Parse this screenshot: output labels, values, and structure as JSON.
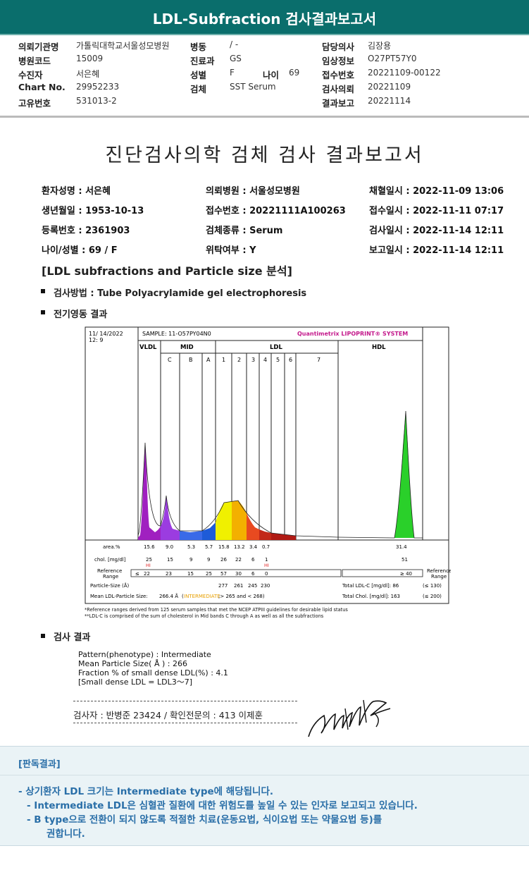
{
  "header": {
    "title": "LDL-Subfraction 검사결과보고서",
    "left": [
      {
        "label": "의뢰기관명",
        "value": "가톨릭대학교서울성모병원"
      },
      {
        "label": "병원코드",
        "value": "15009"
      },
      {
        "label": "수진자",
        "value": "서은혜"
      },
      {
        "label": "Chart No.",
        "value": "29952233"
      },
      {
        "label": "고유번호",
        "value": "531013-2"
      }
    ],
    "mid": [
      {
        "label": "병동",
        "value": "/ -"
      },
      {
        "label": "진료과",
        "value": "GS"
      },
      {
        "label": "성별",
        "value": "F"
      },
      {
        "label": "검체",
        "value": "SST Serum"
      }
    ],
    "age_label": "나이",
    "age_value": "69",
    "right": [
      {
        "label": "담당의사",
        "value": "김장용"
      },
      {
        "label": "임상정보",
        "value": "O27PT57Y0"
      },
      {
        "label": "접수번호",
        "value": "20221109-00122"
      },
      {
        "label": "검사의뢰",
        "value": "20221109"
      },
      {
        "label": "결과보고",
        "value": "20221114"
      }
    ]
  },
  "report": {
    "title": "진단검사의학 검체 검사 결과보고서",
    "col1": [
      "환자성명 : 서은혜",
      "생년월일 : 1953-10-13",
      "등록번호 : 2361903",
      "나이/성별 : 69 / F"
    ],
    "col2": [
      "의뢰병원 : 서울성모병원",
      "접수번호 : 20221111A100263",
      "검체종류 : Serum",
      "위탁여부 : Y"
    ],
    "col3": [
      "채혈일시 : 2022-11-09 13:06",
      "접수일시 : 2022-11-11 07:17",
      "검사일시 : 2022-11-14 12:11",
      "보고일시 : 2022-11-14 12:11"
    ],
    "section_title": "[LDL subfractions and Particle size 분석]",
    "method": "검사방법 : Tube Polyacrylamide gel electrophoresis",
    "electro": "전기영동 결과",
    "result_heading": "검사 결과"
  },
  "chart": {
    "date": "11/ 14/2022",
    "time": "12:  9",
    "sample": "SAMPLE:   11-O57PY04N0",
    "brand": "Quantimetrix LIPOPRINT® SYSTEM",
    "regions": {
      "vldl": "VLDL",
      "mid": "MID",
      "ldl": "LDL",
      "hdl": "HDL"
    },
    "bands": [
      "C",
      "B",
      "A",
      "1",
      "2",
      "3",
      "4",
      "5",
      "6",
      "7"
    ],
    "row_labels": {
      "area": "area.%",
      "chol": "chol. [mg/dl]",
      "ref": "Reference Range",
      "particle": "Particle-Size (Å)",
      "mean": "Mean LDL-Particle Size:"
    },
    "area": [
      "15.6",
      "9.0",
      "5.3",
      "5.7",
      "15.8",
      "13.2",
      "3.4",
      "0.7",
      "31.4"
    ],
    "chol": [
      "25",
      "15",
      "9",
      "9",
      "26",
      "22",
      "6",
      "1",
      "51"
    ],
    "hi_flags": [
      "HI",
      "HI"
    ],
    "ref": [
      "≤",
      "22",
      "23",
      "15",
      "25",
      "57",
      "30",
      "6",
      "0",
      "≥ 40"
    ],
    "particle": [
      "277",
      "261",
      "245",
      "230"
    ],
    "mean_value": "266.4 Å",
    "mean_class": "INTERMEDIATE",
    "mean_range": ";> 265 and < 268)",
    "mean_paren": "(",
    "total_ldl": "Total LDL-C [mg/dl]:  86",
    "total_ldl_ref": "(≤ 130)",
    "total_chol": "Total Chol. [mg/dl]:   163",
    "total_chol_ref": "(≤ 200)",
    "ref_right": "Reference Range",
    "note1": "*Reference ranges derived from 125 serum samples that met the NCEP ATPIII guidelines for desirable lipid status",
    "note2": "**LDL-C is comprised of the sum of cholesterol in Mid bands C through A as well as all the subfractions"
  },
  "result_text": [
    "Pattern(phenotype) : Intermediate",
    "Mean Particle Size( Å ) : 266",
    "Fraction % of small dense LDL(%) : 4.1",
    "[Small dense LDL = LDL3～7]"
  ],
  "signature": {
    "text": "검사자 : 반병준  23424  /  확인전문의 : 413  이제훈"
  },
  "interpretation": {
    "heading": "[판독결과]",
    "lines": [
      "-  상기환자 LDL 크기는 Intermediate type에 해당됩니다.",
      "-  Intermediate LDL은 심혈관 질환에 대한 위험도를 높일 수 있는 인자로 보고되고 있습니다.",
      "-  B type으로 전환이 되지 않도록 적절한 치료(운동요법, 식이요법 또는 약물요법 등)를",
      "권합니다."
    ]
  }
}
